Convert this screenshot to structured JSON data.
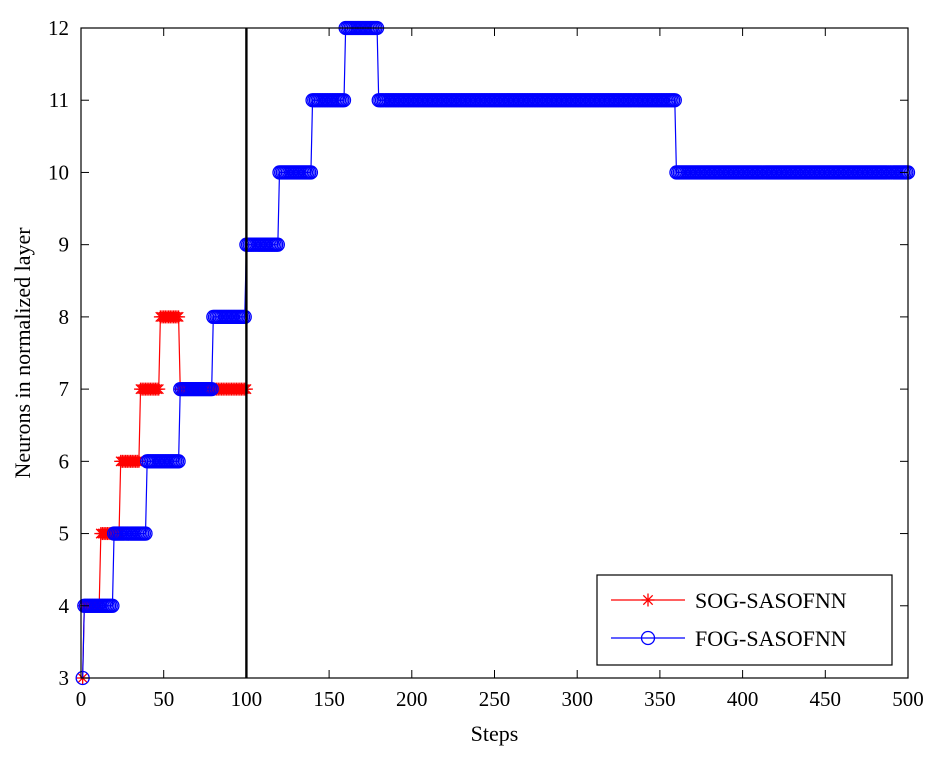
{
  "chart_data": {
    "type": "line",
    "title": "",
    "xlabel": "Steps",
    "ylabel": "Neurons in normalized layer",
    "xlim": [
      0,
      500
    ],
    "ylim": [
      3,
      12
    ],
    "xticks": [
      0,
      50,
      100,
      150,
      200,
      250,
      300,
      350,
      400,
      450,
      500
    ],
    "yticks": [
      3,
      4,
      5,
      6,
      7,
      8,
      9,
      10,
      11,
      12
    ],
    "grid": false,
    "legend_position": "bottom-right",
    "vertical_line": {
      "x": 100,
      "color": "#000000"
    },
    "series": [
      {
        "name": "SOG-SASOFNN",
        "color": "#ff0000",
        "marker": "asterisk",
        "steps": [
          {
            "x0": 1,
            "x1": 1,
            "y": 3
          },
          {
            "x0": 2,
            "x1": 11,
            "y": 4
          },
          {
            "x0": 12,
            "x1": 23,
            "y": 5
          },
          {
            "x0": 24,
            "x1": 35,
            "y": 6
          },
          {
            "x0": 36,
            "x1": 47,
            "y": 7
          },
          {
            "x0": 48,
            "x1": 59,
            "y": 8
          },
          {
            "x0": 60,
            "x1": 100,
            "y": 7
          }
        ]
      },
      {
        "name": "FOG-SASOFNN",
        "color": "#0000ff",
        "marker": "circle",
        "steps": [
          {
            "x0": 1,
            "x1": 1,
            "y": 3
          },
          {
            "x0": 2,
            "x1": 19,
            "y": 4
          },
          {
            "x0": 20,
            "x1": 39,
            "y": 5
          },
          {
            "x0": 40,
            "x1": 59,
            "y": 6
          },
          {
            "x0": 60,
            "x1": 79,
            "y": 7
          },
          {
            "x0": 80,
            "x1": 99,
            "y": 8
          },
          {
            "x0": 100,
            "x1": 119,
            "y": 9
          },
          {
            "x0": 120,
            "x1": 139,
            "y": 10
          },
          {
            "x0": 140,
            "x1": 159,
            "y": 11
          },
          {
            "x0": 160,
            "x1": 179,
            "y": 12
          },
          {
            "x0": 180,
            "x1": 359,
            "y": 11
          },
          {
            "x0": 360,
            "x1": 500,
            "y": 10
          }
        ]
      }
    ]
  }
}
